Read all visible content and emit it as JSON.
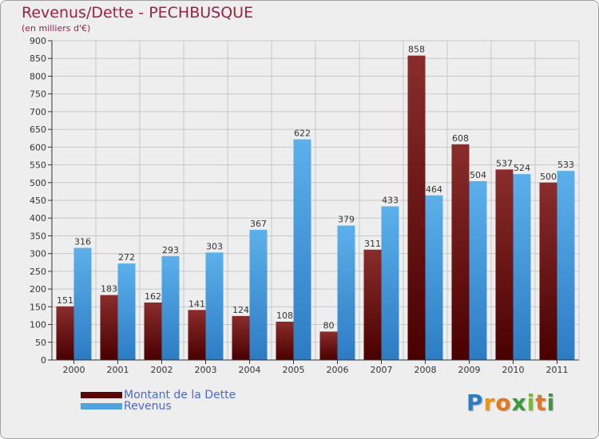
{
  "header": {
    "title": "Revenus/Dette - PECHBUSQUE",
    "subtitle": "(en milliers d'€)"
  },
  "colors": {
    "dette": "#7a1c1c",
    "revenus": "#4fa3e0",
    "axis": "#333333",
    "grid": "#c8c8c8"
  },
  "legend": [
    {
      "label": "Montant de la Dette",
      "color": "#5a0606"
    },
    {
      "label": "Revenus",
      "color": "#4fa3e0"
    }
  ],
  "logo": {
    "letters": [
      "P",
      "r",
      "o",
      "x",
      "i",
      "t",
      "i"
    ],
    "colors": [
      "#2b7cc0",
      "#e59a1e",
      "#e2781d",
      "#3c9a3c",
      "#7ab83a",
      "#e2781d",
      "#3c9a3c"
    ]
  },
  "chart_data": {
    "type": "bar",
    "categories": [
      "2000",
      "2001",
      "2002",
      "2003",
      "2004",
      "2005",
      "2006",
      "2007",
      "2008",
      "2009",
      "2010",
      "2011"
    ],
    "series": [
      {
        "name": "Montant de la Dette",
        "values": [
          151,
          183,
          162,
          141,
          124,
          108,
          80,
          311,
          858,
          608,
          537,
          500
        ]
      },
      {
        "name": "Revenus",
        "values": [
          316,
          272,
          293,
          303,
          367,
          622,
          379,
          433,
          464,
          504,
          524,
          533
        ]
      }
    ],
    "title": "Revenus/Dette - PECHBUSQUE",
    "subtitle": "(en milliers d'€)",
    "xlabel": "",
    "ylabel": "",
    "ylim": [
      0,
      900
    ],
    "ytick_step": 50,
    "grid": true,
    "legend_position": "bottom-left"
  }
}
